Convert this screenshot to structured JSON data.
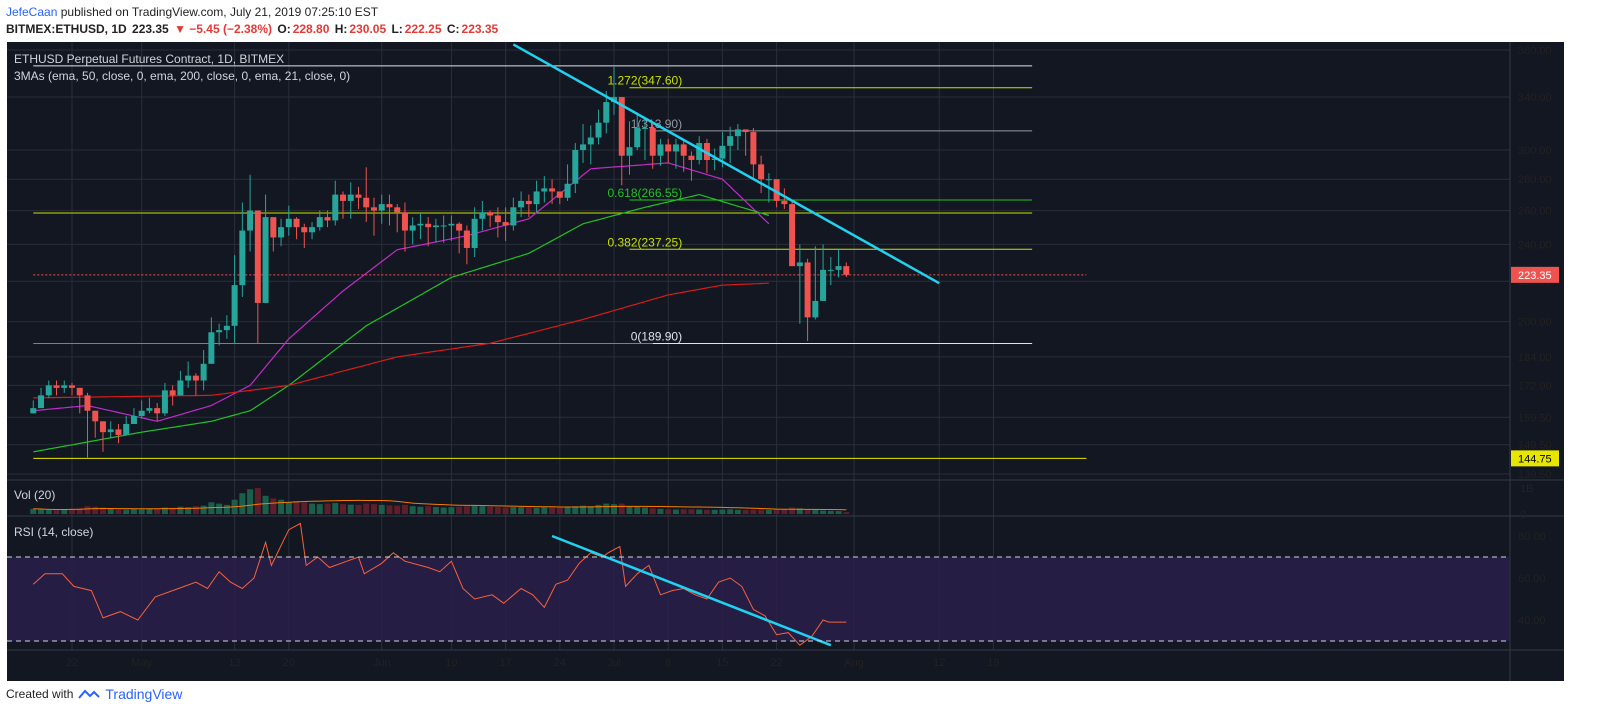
{
  "header": {
    "publisher": "JefeCaan",
    "published_text": "published on TradingView.com, July 21, 2019 07:25:10 EST",
    "symbol_line": "BITMEX:ETHUSD, 1D",
    "last": "223.35",
    "change": "▼ −5.45 (−2.38%)",
    "open_label": "O:",
    "open": "228.80",
    "high_label": "H:",
    "high": "230.05",
    "low_label": "L:",
    "low": "222.25",
    "close_label": "C:",
    "close": "223.35"
  },
  "footer": {
    "created_with": "Created with",
    "brand": "TradingView"
  },
  "colors": {
    "background": "#131722",
    "rsi_band": "#2a1f4a",
    "up": "#26a69a",
    "down": "#ef5350",
    "ema21": "#c22bc9",
    "ema50": "#21c224",
    "ema200": "#d81b1b",
    "trendline": "#1fd2f0",
    "fib": "#c6e000",
    "grid": "#2a2e39"
  },
  "chart_data": [
    {
      "type": "candlestick",
      "title": "ETHUSD Perpetual Futures Contract, 1D, BITMEX",
      "indicator_label": "3MAs (ema, 50, close, 0, ema, 200, close, 0, ema, 21, close, 0)",
      "y_scale": "log",
      "y_ticks": [
        380,
        340,
        300,
        280,
        260,
        240,
        220,
        200,
        184,
        172,
        159.5,
        149.5,
        139.5
      ],
      "y_tick_labels": [
        "380.00",
        "340.00",
        "300.00",
        "280.00",
        "260.00",
        "240.00",
        "220.00",
        "200.00",
        "184.00",
        "172.00",
        "159.50",
        "149.50",
        "139.50"
      ],
      "x_tick_labels": [
        {
          "label": "22",
          "date": "2019-04-22"
        },
        {
          "label": "May",
          "date": "2019-05-01"
        },
        {
          "label": "13",
          "date": "2019-05-13"
        },
        {
          "label": "20",
          "date": "2019-05-20"
        },
        {
          "label": "Jun",
          "date": "2019-06-01"
        },
        {
          "label": "10",
          "date": "2019-06-10"
        },
        {
          "label": "17",
          "date": "2019-06-17"
        },
        {
          "label": "24",
          "date": "2019-06-24"
        },
        {
          "label": "Jul",
          "date": "2019-07-01"
        },
        {
          "label": "8",
          "date": "2019-07-08"
        },
        {
          "label": "15",
          "date": "2019-07-15"
        },
        {
          "label": "22",
          "date": "2019-07-22"
        },
        {
          "label": "Aug",
          "date": "2019-08-01"
        },
        {
          "label": "12",
          "date": "2019-08-12"
        },
        {
          "label": "19",
          "date": "2019-08-19"
        }
      ],
      "x_axis_end_date": "2019-08-31",
      "last_price_label": "223.35",
      "support_label": "144.75",
      "ohlc": {
        "start_date": "2019-04-17",
        "close": [
          163,
          168,
          172,
          171,
          172,
          171,
          168,
          162,
          158,
          154,
          155,
          153,
          157,
          160,
          162,
          163,
          161,
          170,
          168,
          174,
          176,
          174,
          181,
          195,
          196,
          198,
          218,
          248,
          260,
          209,
          256,
          244,
          250,
          255,
          250,
          247,
          250,
          256,
          254,
          270,
          266,
          270,
          268,
          262,
          260,
          264,
          262,
          259,
          248,
          251,
          252,
          250,
          251,
          251,
          252,
          248,
          238,
          255,
          259,
          257,
          253,
          251,
          262,
          266,
          264,
          272,
          274,
          272,
          268,
          277,
          300,
          304,
          309,
          320,
          336,
          340,
          296,
          302,
          316,
          316,
          296,
          304,
          299,
          304,
          296,
          293,
          305,
          293,
          294,
          303,
          310,
          315,
          313,
          290,
          280,
          280,
          266,
          264,
          228,
          230,
          202,
          210,
          226,
          226,
          228,
          223.35
        ],
        "high": [
          166,
          171,
          174,
          174,
          174,
          173,
          171,
          169,
          162,
          158,
          158,
          157,
          160,
          163,
          166,
          167,
          165,
          173,
          172,
          178,
          182,
          177,
          187,
          202,
          199,
          203,
          234,
          265,
          283,
          213,
          270,
          253,
          255,
          263,
          256,
          252,
          253,
          260,
          260,
          279,
          272,
          278,
          275,
          288,
          268,
          270,
          270,
          264,
          265,
          256,
          258,
          256,
          255,
          257,
          257,
          253,
          251,
          262,
          266,
          260,
          262,
          262,
          268,
          272,
          270,
          279,
          282,
          280,
          272,
          290,
          305,
          319,
          318,
          330,
          345,
          365,
          314,
          321,
          328,
          324,
          320,
          308,
          308,
          308,
          307,
          299,
          310,
          308,
          301,
          313,
          317,
          319,
          314,
          316,
          296,
          284,
          276,
          274,
          266,
          240,
          232,
          239,
          240,
          233,
          237,
          230
        ],
        "low": [
          161,
          164,
          167,
          168,
          169,
          168,
          161,
          145,
          152,
          147,
          152,
          150,
          154,
          157,
          159,
          161,
          158,
          160,
          164,
          168,
          171,
          168,
          170,
          181,
          189,
          192,
          190,
          212,
          236,
          190,
          241,
          236,
          239,
          245,
          243,
          238,
          243,
          248,
          250,
          251,
          255,
          255,
          261,
          253,
          245,
          252,
          251,
          247,
          236,
          240,
          243,
          239,
          241,
          241,
          242,
          235,
          229,
          233,
          248,
          250,
          244,
          242,
          248,
          256,
          256,
          259,
          265,
          264,
          264,
          266,
          271,
          291,
          290,
          304,
          312,
          326,
          276,
          283,
          300,
          293,
          287,
          289,
          291,
          287,
          285,
          279,
          290,
          284,
          286,
          288,
          291,
          300,
          296,
          281,
          271,
          265,
          262,
          261,
          228,
          199,
          191,
          201,
          214,
          218,
          222,
          222.25
        ]
      },
      "moving_averages": [
        {
          "name": "ema 21",
          "color": "#c22bc9",
          "anchors": [
            [
              "2019-04-17",
              162
            ],
            [
              "2019-04-24",
              164
            ],
            [
              "2019-05-03",
              158
            ],
            [
              "2019-05-10",
              164
            ],
            [
              "2019-05-15",
              172
            ],
            [
              "2019-05-20",
              192
            ],
            [
              "2019-05-27",
              215
            ],
            [
              "2019-06-03",
              237
            ],
            [
              "2019-06-12",
              245
            ],
            [
              "2019-06-20",
              255
            ],
            [
              "2019-06-28",
              287
            ],
            [
              "2019-07-08",
              291
            ],
            [
              "2019-07-15",
              280
            ],
            [
              "2019-07-21",
              252
            ]
          ]
        },
        {
          "name": "ema 50",
          "color": "#21c224",
          "anchors": [
            [
              "2019-04-17",
              147
            ],
            [
              "2019-05-01",
              154
            ],
            [
              "2019-05-10",
              158
            ],
            [
              "2019-05-15",
              162
            ],
            [
              "2019-05-20",
              172
            ],
            [
              "2019-05-30",
              198
            ],
            [
              "2019-06-10",
              222
            ],
            [
              "2019-06-20",
              235
            ],
            [
              "2019-06-27",
              252
            ],
            [
              "2019-07-05",
              262
            ],
            [
              "2019-07-12",
              270
            ],
            [
              "2019-07-21",
              257
            ]
          ]
        },
        {
          "name": "ema 200",
          "color": "#d81b1b",
          "anchors": [
            [
              "2019-04-17",
              167
            ],
            [
              "2019-05-10",
              168
            ],
            [
              "2019-05-20",
              172
            ],
            [
              "2019-06-03",
              184
            ],
            [
              "2019-06-15",
              190
            ],
            [
              "2019-06-27",
              201
            ],
            [
              "2019-07-08",
              213
            ],
            [
              "2019-07-15",
              218
            ],
            [
              "2019-07-21",
              219
            ]
          ]
        }
      ],
      "horizontal_levels": [
        {
          "label": "",
          "value": 366,
          "color": "#e0e3eb",
          "date_from": "2019-04-17",
          "date_to": "2019-08-24"
        },
        {
          "label": "1.272(347.60)",
          "value": 347.6,
          "color": "#c6e000",
          "date_from": "2019-07-03",
          "date_to": "2019-08-24"
        },
        {
          "label": "1(313.90)",
          "value": 313.9,
          "color": "#9598a1",
          "date_from": "2019-07-06",
          "date_to": "2019-08-24"
        },
        {
          "label": "0.618(266.55)",
          "value": 266.55,
          "color": "#21c224",
          "date_from": "2019-07-03",
          "date_to": "2019-08-24"
        },
        {
          "label": "",
          "value": 258.5,
          "color": "#c6e000",
          "date_from": "2019-04-17",
          "date_to": "2019-08-24"
        },
        {
          "label": "0.382(237.25)",
          "value": 237.25,
          "color": "#c6e000",
          "date_from": "2019-07-03",
          "date_to": "2019-08-24"
        },
        {
          "label": "",
          "value": 223.35,
          "color": "#ef5350",
          "dashed": true,
          "date_from": "2019-04-17",
          "date_to": "2019-08-31"
        },
        {
          "label": "0(189.90)",
          "value": 189.9,
          "color": "#e0e3eb",
          "date_from": "2019-07-06",
          "date_to": "2019-08-24"
        },
        {
          "label": "",
          "value": 189.9,
          "color": "#21c224",
          "date_from": "2019-04-17",
          "date_to": "2019-07-06"
        },
        {
          "label": "",
          "value": 144.75,
          "color": "#e6e600",
          "date_from": "2019-04-17",
          "date_to": "2019-08-31"
        }
      ],
      "trendline": {
        "color": "#1fd2f0",
        "points": [
          [
            "2019-06-18",
            385
          ],
          [
            "2019-08-12",
            219
          ]
        ]
      }
    },
    {
      "type": "bar",
      "title": "Vol (20)",
      "y_tick_labels": [
        "1B",
        "0"
      ],
      "y_max": 1,
      "volume_base": [
        0.2,
        0.18,
        0.16,
        0.15,
        0.18,
        0.2,
        0.22,
        0.3,
        0.28,
        0.25,
        0.2,
        0.18,
        0.17,
        0.19,
        0.18,
        0.2,
        0.22,
        0.25,
        0.24,
        0.28,
        0.26,
        0.3,
        0.32,
        0.45,
        0.4,
        0.35,
        0.55,
        0.8,
        0.95,
        1.0,
        0.7,
        0.6,
        0.55,
        0.45,
        0.5,
        0.45,
        0.4,
        0.38,
        0.4,
        0.42,
        0.38,
        0.36,
        0.35,
        0.4,
        0.38,
        0.35,
        0.33,
        0.32,
        0.35,
        0.3,
        0.28,
        0.3,
        0.27,
        0.25,
        0.26,
        0.28,
        0.3,
        0.32,
        0.3,
        0.28,
        0.26,
        0.25,
        0.27,
        0.26,
        0.25,
        0.24,
        0.26,
        0.25,
        0.24,
        0.27,
        0.3,
        0.32,
        0.3,
        0.35,
        0.4,
        0.38,
        0.4,
        0.3,
        0.28,
        0.25,
        0.22,
        0.2,
        0.18,
        0.17,
        0.18,
        0.18,
        0.17,
        0.16,
        0.16,
        0.17,
        0.18,
        0.16,
        0.15,
        0.16,
        0.17,
        0.16,
        0.18,
        0.19,
        0.25,
        0.22,
        0.18,
        0.16,
        0.13,
        0.12,
        0.11,
        0.07
      ]
    },
    {
      "type": "line",
      "title": "RSI (14, close)",
      "y_tick_labels": [
        "80.00",
        "60.00",
        "40.00"
      ],
      "ylim": [
        25,
        88
      ],
      "bands": [
        30,
        70
      ],
      "rsi_anchors": [
        [
          "2019-04-17",
          57
        ],
        [
          "2019-04-19",
          62
        ],
        [
          "2019-04-22",
          62
        ],
        [
          "2019-04-24",
          56
        ],
        [
          "2019-04-27",
          54
        ],
        [
          "2019-04-29",
          41
        ],
        [
          "2019-05-02",
          44
        ],
        [
          "2019-05-05",
          40
        ],
        [
          "2019-05-08",
          51
        ],
        [
          "2019-05-12",
          55
        ],
        [
          "2019-05-15",
          58
        ],
        [
          "2019-05-17",
          55
        ],
        [
          "2019-05-19",
          63
        ],
        [
          "2019-05-21",
          58
        ],
        [
          "2019-05-23",
          55
        ],
        [
          "2019-05-25",
          60
        ],
        [
          "2019-05-27",
          77
        ],
        [
          "2019-05-28",
          66
        ],
        [
          "2019-05-31",
          83
        ],
        [
          "2019-06-02",
          86
        ],
        [
          "2019-06-03",
          66
        ],
        [
          "2019-06-05",
          70
        ],
        [
          "2019-06-07",
          65
        ],
        [
          "2019-06-10",
          68
        ],
        [
          "2019-06-12",
          70
        ],
        [
          "2019-06-13",
          62
        ],
        [
          "2019-06-16",
          67
        ],
        [
          "2019-06-18",
          72
        ],
        [
          "2019-06-20",
          68
        ],
        [
          "2019-06-24",
          65
        ],
        [
          "2019-06-26",
          63
        ],
        [
          "2019-06-28",
          68
        ],
        [
          "2019-06-30",
          55
        ],
        [
          "2019-07-02",
          50
        ],
        [
          "2019-07-05",
          52
        ],
        [
          "2019-07-07",
          48
        ],
        [
          "2019-07-10",
          55
        ],
        [
          "2019-07-12",
          52
        ],
        [
          "2019-07-14",
          46
        ],
        [
          "2019-07-16",
          57
        ],
        [
          "2019-07-18",
          59
        ],
        [
          "2019-07-20",
          67
        ],
        [
          "2019-07-22",
          72
        ],
        [
          "2019-07-24",
          70
        ],
        [
          "2019-07-25",
          72
        ],
        [
          "2019-07-27",
          75
        ],
        [
          "2019-07-28",
          56
        ],
        [
          "2019-07-30",
          62
        ],
        [
          "2019-08-01",
          66
        ],
        [
          "2019-08-03",
          52
        ],
        [
          "2019-08-05",
          54
        ],
        [
          "2019-08-07",
          55
        ],
        [
          "2019-08-09",
          52
        ],
        [
          "2019-08-11",
          50
        ],
        [
          "2019-08-13",
          58
        ],
        [
          "2019-08-15",
          60
        ],
        [
          "2019-08-17",
          56
        ],
        [
          "2019-08-19",
          45
        ],
        [
          "2019-08-21",
          42
        ],
        [
          "2019-08-23",
          33
        ],
        [
          "2019-08-25",
          34
        ],
        [
          "2019-08-27",
          28
        ],
        [
          "2019-08-29",
          32
        ],
        [
          "2019-08-31",
          40
        ],
        [
          "2019-09-01",
          39
        ],
        [
          "2019-09-03",
          39
        ],
        [
          "2019-09-04",
          39
        ]
      ],
      "trendline": {
        "color": "#1fd2f0",
        "points": [
          [
            "2019-06-23",
            80
          ],
          [
            "2019-07-29",
            28
          ]
        ]
      }
    }
  ]
}
